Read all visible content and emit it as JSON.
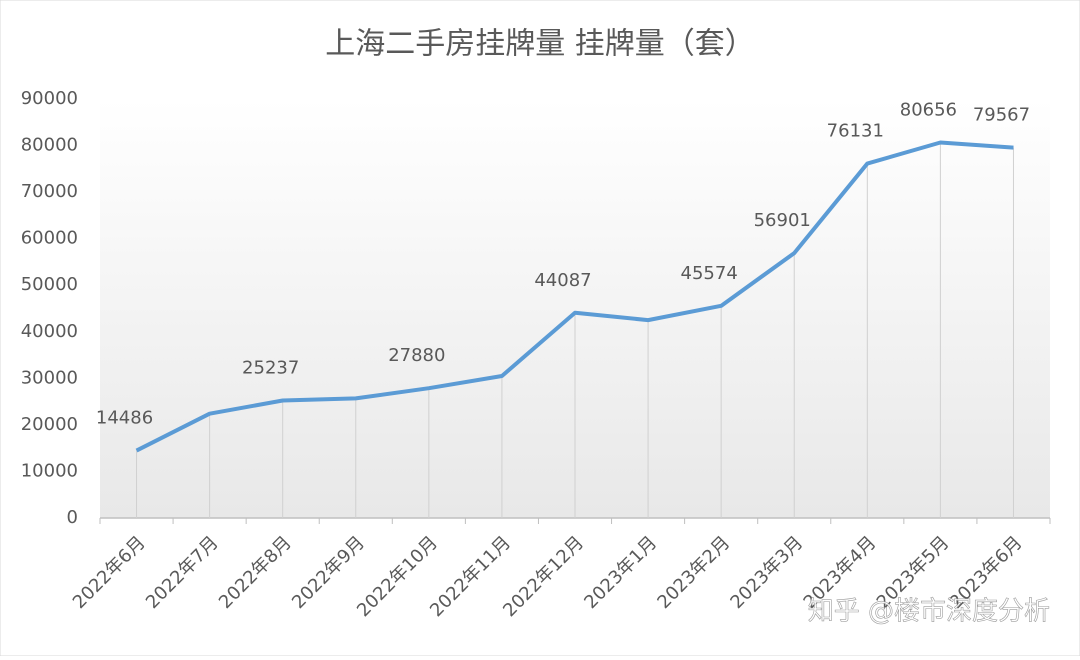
{
  "chart_data": {
    "type": "line",
    "title": "上海二手房挂牌量 挂牌量（套）",
    "categories": [
      "2022年6月",
      "2022年7月",
      "2022年8月",
      "2022年9月",
      "2022年10月",
      "2022年11月",
      "2022年12月",
      "2023年1月",
      "2023年2月",
      "2023年3月",
      "2023年4月",
      "2023年5月",
      "2023年6月"
    ],
    "series": [
      {
        "color": "#5b9bd5",
        "values": [
          14486,
          22400,
          25237,
          25700,
          27880,
          30500,
          44087,
          42500,
          45574,
          56901,
          76131,
          80656,
          79567
        ],
        "value_labels": [
          "14486",
          null,
          "25237",
          null,
          "27880",
          null,
          "44087",
          null,
          "45574",
          "56901",
          "76131",
          "80656",
          "79567"
        ]
      }
    ],
    "ylim": [
      0,
      90000
    ],
    "yticks": [
      0,
      10000,
      20000,
      30000,
      40000,
      50000,
      60000,
      70000,
      80000,
      90000
    ],
    "drop_lines": true,
    "watermark": "知乎 @楼市深度分析"
  }
}
